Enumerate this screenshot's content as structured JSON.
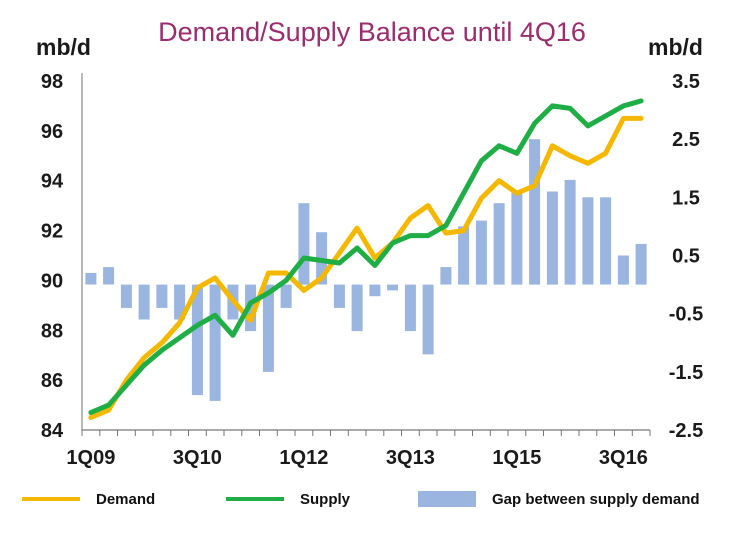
{
  "chart_data": {
    "type": "bar+line",
    "title": "Demand/Supply Balance until 4Q16",
    "ylabel_left": "mb/d",
    "ylabel_right": "mb/d",
    "ylim_left": [
      84,
      98
    ],
    "ylim_right": [
      -2.5,
      3.5
    ],
    "yticks_left": [
      "98",
      "96",
      "94",
      "92",
      "90",
      "88",
      "86",
      "84"
    ],
    "yticks_right": [
      "3.5",
      "2.5",
      "1.5",
      "0.5",
      "-0.5",
      "-1.5",
      "-2.5"
    ],
    "categories": [
      "1Q09",
      "2Q09",
      "3Q09",
      "4Q09",
      "1Q10",
      "2Q10",
      "3Q10",
      "4Q10",
      "1Q11",
      "2Q11",
      "3Q11",
      "4Q11",
      "1Q12",
      "2Q12",
      "3Q12",
      "4Q12",
      "1Q13",
      "2Q13",
      "3Q13",
      "4Q13",
      "1Q14",
      "2Q14",
      "3Q14",
      "4Q14",
      "1Q15",
      "2Q15",
      "3Q15",
      "4Q15",
      "1Q16",
      "2Q16",
      "3Q16",
      "4Q16"
    ],
    "x_tick_labels": [
      {
        "index": 0,
        "label": "1Q09"
      },
      {
        "index": 6,
        "label": "3Q10"
      },
      {
        "index": 12,
        "label": "1Q12"
      },
      {
        "index": 18,
        "label": "3Q13"
      },
      {
        "index": 24,
        "label": "1Q15"
      },
      {
        "index": 30,
        "label": "3Q16"
      }
    ],
    "series": [
      {
        "name": "Demand",
        "type": "line",
        "axis": "left",
        "color": "#f5b800",
        "values": [
          84.5,
          84.8,
          86.0,
          86.9,
          87.5,
          88.3,
          89.7,
          90.1,
          89.2,
          88.4,
          90.3,
          90.3,
          89.6,
          90.1,
          91.1,
          92.1,
          90.9,
          91.5,
          92.5,
          93.0,
          91.9,
          92.0,
          93.3,
          94.0,
          93.5,
          93.8,
          95.4,
          95.0,
          94.7,
          95.1,
          96.5,
          96.5
        ]
      },
      {
        "name": "Supply",
        "type": "line",
        "axis": "left",
        "color": "#1fae45",
        "values": [
          84.7,
          85.0,
          85.8,
          86.6,
          87.2,
          87.7,
          88.2,
          88.6,
          87.8,
          89.1,
          89.5,
          90.0,
          90.9,
          90.8,
          90.7,
          91.3,
          90.6,
          91.5,
          91.8,
          91.8,
          92.2,
          93.5,
          94.8,
          95.4,
          95.1,
          96.3,
          97.0,
          96.9,
          96.2,
          96.6,
          97.0,
          97.2
        ]
      },
      {
        "name": "Gap between supply demand",
        "type": "bar",
        "axis": "right",
        "color": "#9ab5e0",
        "values": [
          0.2,
          0.3,
          -0.4,
          -0.6,
          -0.4,
          -0.6,
          -1.9,
          -2.0,
          -0.6,
          -0.8,
          -1.5,
          -0.4,
          1.4,
          0.9,
          -0.4,
          -0.8,
          -0.2,
          -0.1,
          -0.8,
          -1.2,
          0.3,
          1.0,
          1.1,
          1.4,
          1.6,
          2.5,
          1.6,
          1.8,
          1.5,
          1.5,
          0.5,
          0.7
        ]
      }
    ],
    "legend_placement": "bottom",
    "grid": false
  }
}
